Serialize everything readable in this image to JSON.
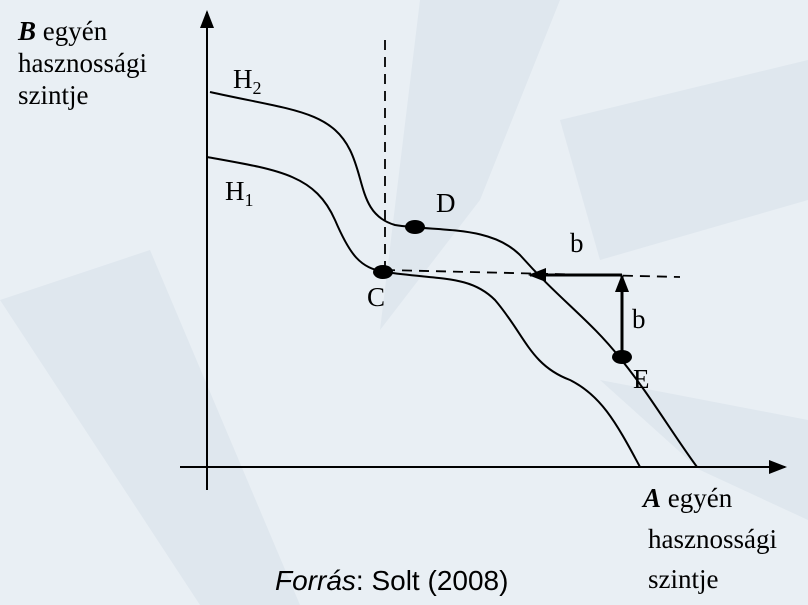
{
  "y_axis_label": {
    "variable": "B",
    "lines": [
      "egyén",
      "hasznossági",
      "szintje"
    ]
  },
  "x_axis_label": {
    "variable": "A",
    "lines": [
      "egyén",
      "hasznossági",
      "szintje"
    ]
  },
  "curves": [
    {
      "name": "H",
      "subscript": "2"
    },
    {
      "name": "H",
      "subscript": "1"
    }
  ],
  "points": [
    "C",
    "D",
    "E"
  ],
  "arrows": [
    "b",
    "b"
  ],
  "source": {
    "italic": "Forrás",
    "rest": ": Solt (2008)"
  }
}
